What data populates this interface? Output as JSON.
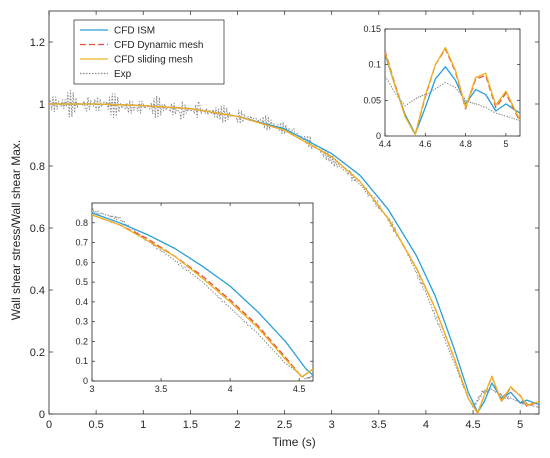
{
  "chart_data": {
    "type": "line",
    "title": "",
    "xlabel": "Time (s)",
    "ylabel": "Wall shear stress/Wall shear Max.",
    "xlim": [
      0,
      5.2
    ],
    "ylim": [
      0,
      1.3
    ],
    "xticks": [
      0,
      0.5,
      1,
      1.5,
      2,
      2.5,
      3,
      3.5,
      4,
      4.5,
      5
    ],
    "xtick_labels": [
      "0",
      "0.5",
      "1",
      "1.5",
      "2",
      "2.5",
      "3",
      "3.5",
      "4",
      "4.5",
      "5"
    ],
    "yticks": [
      0,
      0.2,
      0.4,
      0.6,
      0.8,
      1,
      1.2
    ],
    "ytick_labels": [
      "0",
      "0.2",
      "0.4",
      "0.6",
      "0.8",
      "1",
      "1.2"
    ],
    "grid": false,
    "legend_position": "top-left",
    "series": [
      {
        "name": "CFD ISM",
        "color": "#2a9fd6",
        "dash": "solid",
        "x": [
          0,
          0.5,
          1,
          1.5,
          2,
          2.5,
          3,
          3.3,
          3.6,
          3.9,
          4.1,
          4.3,
          4.45,
          4.55,
          4.62,
          4.7,
          4.8,
          4.9,
          5.0,
          5.07,
          5.2
        ],
        "y": [
          1.0,
          1.0,
          0.995,
          0.985,
          0.96,
          0.92,
          0.84,
          0.77,
          0.66,
          0.51,
          0.38,
          0.21,
          0.07,
          0.005,
          0.04,
          0.1,
          0.05,
          0.07,
          0.035,
          0.045,
          0.03
        ]
      },
      {
        "name": "CFD Dynamic mesh",
        "color": "#e8503a",
        "dash": "dashed",
        "x": [
          0,
          0.5,
          1,
          1.5,
          2,
          2.5,
          3,
          3.3,
          3.6,
          3.9,
          4.1,
          4.3,
          4.45,
          4.55,
          4.62,
          4.7,
          4.8,
          4.9,
          5.0,
          5.07,
          5.2
        ],
        "y": [
          1.0,
          1.0,
          0.995,
          0.985,
          0.96,
          0.915,
          0.83,
          0.75,
          0.63,
          0.47,
          0.34,
          0.18,
          0.05,
          0.003,
          0.06,
          0.12,
          0.04,
          0.085,
          0.06,
          0.025,
          0.04
        ]
      },
      {
        "name": "CFD sliding mesh",
        "color": "#edb120",
        "dash": "solid",
        "x": [
          0,
          0.5,
          1,
          1.5,
          2,
          2.5,
          3,
          3.3,
          3.6,
          3.9,
          4.1,
          4.3,
          4.45,
          4.55,
          4.62,
          4.7,
          4.8,
          4.9,
          5.0,
          5.07,
          5.2
        ],
        "y": [
          1.0,
          1.0,
          0.995,
          0.985,
          0.96,
          0.915,
          0.83,
          0.75,
          0.63,
          0.47,
          0.34,
          0.18,
          0.05,
          0.003,
          0.06,
          0.122,
          0.042,
          0.088,
          0.058,
          0.028,
          0.04
        ]
      },
      {
        "name": "Exp",
        "color": "#8a8a8a",
        "dash": "dotted",
        "x": [
          0,
          0.2,
          0.4,
          0.6,
          0.8,
          1.0,
          1.2,
          1.4,
          1.6,
          1.8,
          2.0,
          2.2,
          2.4,
          2.6,
          2.8,
          3.0,
          3.2,
          3.4,
          3.6,
          3.8,
          4.0,
          4.2,
          4.4,
          4.5,
          4.6,
          4.7,
          4.8,
          4.9,
          5.0,
          5.1,
          5.2
        ],
        "y": [
          1.0,
          1.0,
          1.0,
          1.0,
          0.99,
          0.99,
          0.99,
          0.98,
          0.98,
          0.97,
          0.96,
          0.95,
          0.93,
          0.91,
          0.87,
          0.82,
          0.77,
          0.71,
          0.63,
          0.52,
          0.39,
          0.24,
          0.09,
          0.02,
          0.07,
          0.08,
          0.06,
          0.05,
          0.04,
          0.03,
          0.02
        ]
      }
    ],
    "insets": [
      {
        "position": "top-right",
        "xlim": [
          4.4,
          5.07
        ],
        "ylim": [
          0,
          0.15
        ],
        "xticks": [
          4.4,
          4.6,
          4.8,
          5
        ],
        "xtick_labels": [
          "4.4",
          "4.6",
          "4.8",
          "5"
        ],
        "yticks": [
          0,
          0.05,
          0.1,
          0.15
        ],
        "ytick_labels": [
          "0",
          "0.05",
          "0.1",
          "0.15"
        ],
        "series": [
          {
            "name": "CFD ISM",
            "x": [
              4.4,
              4.45,
              4.5,
              4.55,
              4.6,
              4.65,
              4.7,
              4.75,
              4.8,
              4.85,
              4.9,
              4.95,
              5.0,
              5.07
            ],
            "y": [
              0.115,
              0.07,
              0.03,
              0.003,
              0.04,
              0.08,
              0.097,
              0.078,
              0.045,
              0.065,
              0.058,
              0.035,
              0.045,
              0.032
            ]
          },
          {
            "name": "CFD Dynamic mesh",
            "x": [
              4.4,
              4.45,
              4.5,
              4.55,
              4.6,
              4.65,
              4.7,
              4.75,
              4.8,
              4.85,
              4.9,
              4.95,
              5.0,
              5.07
            ],
            "y": [
              0.12,
              0.072,
              0.028,
              0.002,
              0.055,
              0.1,
              0.122,
              0.09,
              0.038,
              0.08,
              0.085,
              0.04,
              0.06,
              0.02
            ]
          },
          {
            "name": "CFD sliding mesh",
            "x": [
              4.4,
              4.45,
              4.5,
              4.55,
              4.6,
              4.65,
              4.7,
              4.75,
              4.8,
              4.85,
              4.9,
              4.95,
              5.0,
              5.07
            ],
            "y": [
              0.118,
              0.07,
              0.027,
              0.002,
              0.057,
              0.1,
              0.124,
              0.092,
              0.04,
              0.082,
              0.088,
              0.043,
              0.063,
              0.022
            ]
          },
          {
            "name": "Exp",
            "x": [
              4.4,
              4.45,
              4.5,
              4.55,
              4.6,
              4.65,
              4.7,
              4.75,
              4.8,
              4.85,
              4.9,
              4.95,
              5.0,
              5.07
            ],
            "y": [
              0.085,
              0.06,
              0.042,
              0.052,
              0.058,
              0.066,
              0.075,
              0.068,
              0.05,
              0.045,
              0.04,
              0.032,
              0.028,
              0.022
            ]
          }
        ]
      },
      {
        "position": "bottom-left",
        "xlim": [
          3,
          4.6
        ],
        "ylim": [
          0,
          0.9
        ],
        "xticks": [
          3,
          3.5,
          4,
          4.5
        ],
        "xtick_labels": [
          "3",
          "3.5",
          "4",
          "4.5"
        ],
        "yticks": [
          0,
          0.1,
          0.2,
          0.3,
          0.4,
          0.5,
          0.6,
          0.7,
          0.8
        ],
        "ytick_labels": [
          "0",
          "0.1",
          "0.2",
          "0.3",
          "0.4",
          "0.5",
          "0.6",
          "0.7",
          "0.8"
        ],
        "series": [
          {
            "name": "CFD ISM",
            "x": [
              3,
              3.2,
              3.4,
              3.6,
              3.8,
              4.0,
              4.2,
              4.4,
              4.55,
              4.6
            ],
            "y": [
              0.85,
              0.8,
              0.74,
              0.67,
              0.58,
              0.48,
              0.35,
              0.2,
              0.06,
              0.03
            ]
          },
          {
            "name": "CFD Dynamic mesh",
            "x": [
              3,
              3.2,
              3.4,
              3.6,
              3.8,
              4.0,
              4.2,
              4.4,
              4.52,
              4.6
            ],
            "y": [
              0.84,
              0.79,
              0.72,
              0.63,
              0.53,
              0.41,
              0.28,
              0.12,
              0.02,
              0.06
            ]
          },
          {
            "name": "CFD sliding mesh",
            "x": [
              3,
              3.2,
              3.4,
              3.6,
              3.8,
              4.0,
              4.2,
              4.4,
              4.52,
              4.6
            ],
            "y": [
              0.84,
              0.79,
              0.71,
              0.63,
              0.52,
              0.4,
              0.27,
              0.11,
              0.02,
              0.06
            ]
          },
          {
            "name": "Exp",
            "x": [
              3,
              3.1,
              3.2,
              3.4,
              3.6,
              3.8,
              4.0,
              4.2,
              4.4,
              4.55,
              4.6
            ],
            "y": [
              0.86,
              0.84,
              0.82,
              0.71,
              0.61,
              0.5,
              0.37,
              0.24,
              0.09,
              0.01,
              0.03
            ]
          }
        ]
      }
    ]
  }
}
